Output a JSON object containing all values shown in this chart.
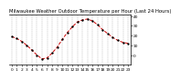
{
  "title": "Milwaukee Weather Outdoor Temperature per Hour (Last 24 Hours)",
  "hours": [
    0,
    1,
    2,
    3,
    4,
    5,
    6,
    7,
    8,
    9,
    10,
    11,
    12,
    13,
    14,
    15,
    16,
    17,
    18,
    19,
    20,
    21,
    22,
    23
  ],
  "temps": [
    19,
    17,
    14,
    10,
    5,
    0,
    -4,
    -3,
    2,
    8,
    16,
    23,
    29,
    34,
    36,
    37,
    35,
    31,
    26,
    22,
    18,
    15,
    13,
    12
  ],
  "line_color": "#cc0000",
  "marker_color": "#000000",
  "bg_color": "#ffffff",
  "grid_color": "#888888",
  "ylim": [
    -10,
    42
  ],
  "yticks": [
    0,
    10,
    20,
    30,
    40
  ],
  "title_fontsize": 3.8,
  "tick_fontsize": 3.2,
  "line_width": 0.7,
  "marker_size": 1.3
}
